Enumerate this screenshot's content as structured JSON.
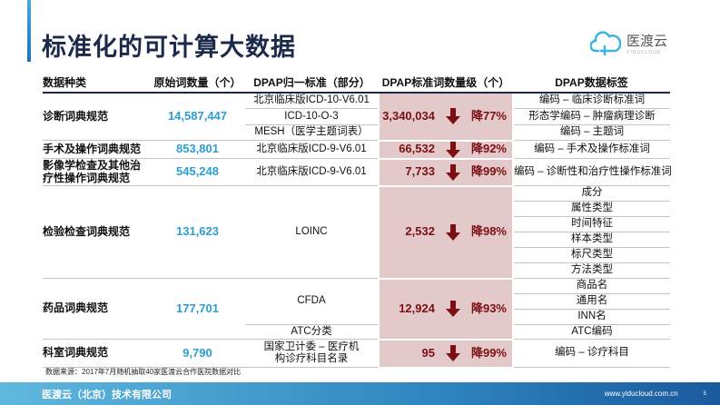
{
  "title": "标准化的可计算大数据",
  "logo": {
    "cn": "医渡云",
    "en": "YIDUCLOUD"
  },
  "headers": [
    "数据种类",
    "原始词数量（个）",
    "DPAP归一标准（部分）",
    "DPAP标准词数量级（个）",
    "DPAP数据标签"
  ],
  "rows": {
    "diag": {
      "cat": "诊断词典规范",
      "count": "14,587,447",
      "stds": [
        "北京临床版ICD-10-V6.01",
        "ICD-10-O-3",
        "MESH（医学主题词表）"
      ],
      "dpap": "3,340,034",
      "drop": "降77%",
      "tags": [
        "编码 – 临床诊断标准词",
        "形态学编码 – 肿瘤病理诊断",
        "编码 – 主题词"
      ]
    },
    "surg": {
      "cat": "手术及操作词典规范",
      "count": "853,801",
      "std": "北京临床版ICD-9-V6.01",
      "dpap": "66,532",
      "drop": "降92%",
      "tag": "编码 – 手术及操作标准词"
    },
    "img": {
      "cat": "影像学检查及其他治疗性操作词典规范",
      "count": "545,248",
      "std": "北京临床版ICD-9-V6.01",
      "dpap": "7,733",
      "drop": "降99%",
      "tag": "编码 – 诊断性和治疗性操作标准词"
    },
    "lab": {
      "cat": "检验检查词典规范",
      "count": "131,623",
      "std": "LOINC",
      "dpap": "2,532",
      "drop": "降98%",
      "tags": [
        "成分",
        "属性类型",
        "时间特征",
        "样本类型",
        "标尺类型",
        "方法类型"
      ]
    },
    "drug": {
      "cat": "药品词典规范",
      "count": "177,701",
      "stds": [
        "CFDA",
        "ATC分类"
      ],
      "dpap": "12,924",
      "drop": "降93%",
      "tags": [
        "商品名",
        "通用名",
        "INN名",
        "ATC编码"
      ]
    },
    "dept": {
      "cat": "科室词典规范",
      "count": "9,790",
      "std": "国家卫计委 – 医疗机构诊疗科目名录",
      "dpap": "95",
      "drop": "降99%",
      "tag": "编码 – 诊疗科目"
    }
  },
  "source": "数据来源：2017年7月随机抽取40家医渡云合作医院数据对比",
  "footer": {
    "company": "医渡云（北京）技术有限公司",
    "url": "www.yiducloud.com.cn",
    "page": "5"
  },
  "colors": {
    "accent": "#2b9fd0",
    "pink": "#e3c9ca",
    "darkred": "#7d0f12",
    "navy": "#1b2a4a"
  }
}
